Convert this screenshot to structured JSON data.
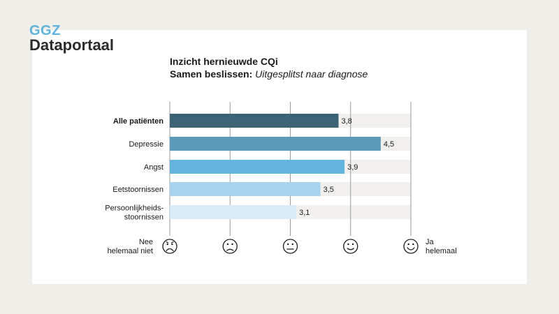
{
  "logo": {
    "top": "GGZ",
    "bottom": "Dataportaal"
  },
  "header": {
    "title": "Inzicht hernieuwde CQi",
    "subtitle_bold": "Samen beslissen:",
    "subtitle_italic": "Uitgesplitst naar diagnose"
  },
  "chart_data": {
    "type": "bar",
    "orientation": "horizontal",
    "categories": [
      "Alle patiënten",
      "Depressie",
      "Angst",
      "Eetstoornissen",
      "Persoonlijkheids-\nstoornissen"
    ],
    "values": [
      3.8,
      4.5,
      3.9,
      3.5,
      3.1
    ],
    "value_labels": [
      "3,8",
      "4,5",
      "3,9",
      "3,5",
      "3,1"
    ],
    "bold_category": "Alle patiënten",
    "colors": [
      "#3b6375",
      "#5b9ab8",
      "#64b4de",
      "#a7d4ec",
      "#d8ecf7"
    ],
    "track_color": "#f1f0ec",
    "gridline_color": "#9a9a9a",
    "xlim": [
      1,
      5
    ],
    "scale_icons": [
      "very-sad-face-icon",
      "sad-face-icon",
      "neutral-face-icon",
      "smiley-face-icon",
      "happy-face-icon"
    ],
    "scale_left_label": "Nee\nhelemaal niet",
    "scale_right_label": "Ja\nhelemaal"
  }
}
